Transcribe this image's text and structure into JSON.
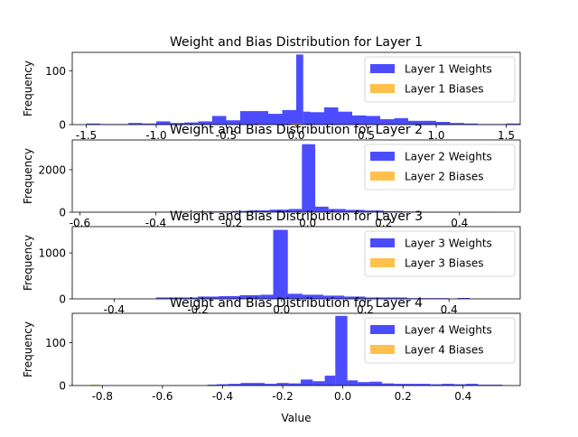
{
  "figure": {
    "xlabel": "Value"
  },
  "colors": {
    "weights": "#0000ff",
    "biases": "#ffa500"
  },
  "chart_data": [
    {
      "type": "bar",
      "title": "Weight and Bias Distribution for Layer 1",
      "ylabel": "Frequency",
      "xlim": [
        -1.6,
        1.6
      ],
      "ylim": [
        0,
        134
      ],
      "xticks": [
        -1.5,
        -1.0,
        -0.5,
        0.0,
        0.5,
        1.0,
        1.5
      ],
      "xtick_labels": [
        "-1.5",
        "-1.0",
        "-0.5",
        "0.0",
        "0.5",
        "1.0",
        "1.5"
      ],
      "yticks": [
        0,
        100
      ],
      "ytick_labels": [
        "0",
        "100"
      ],
      "grid": false,
      "legend_position": "top-right",
      "series": [
        {
          "name": "Layer 1 Weights",
          "color": "#0000ff",
          "bins": [
            [
              -1.5,
              -1.4,
              2
            ],
            [
              -1.4,
              -1.3,
              1
            ],
            [
              -1.3,
              -1.2,
              1
            ],
            [
              -1.2,
              -1.1,
              3
            ],
            [
              -1.1,
              -1.0,
              2
            ],
            [
              -1.0,
              -0.9,
              6
            ],
            [
              -0.9,
              -0.8,
              3
            ],
            [
              -0.8,
              -0.7,
              4
            ],
            [
              -0.7,
              -0.6,
              6
            ],
            [
              -0.6,
              -0.5,
              16
            ],
            [
              -0.5,
              -0.4,
              8
            ],
            [
              -0.4,
              -0.3,
              25
            ],
            [
              -0.3,
              -0.2,
              25
            ],
            [
              -0.2,
              -0.1,
              20
            ],
            [
              -0.1,
              0.0,
              27
            ],
            [
              0.0,
              0.05,
              130
            ],
            [
              0.05,
              0.1,
              24
            ],
            [
              0.1,
              0.2,
              23
            ],
            [
              0.2,
              0.3,
              32
            ],
            [
              0.3,
              0.4,
              24
            ],
            [
              0.4,
              0.5,
              17
            ],
            [
              0.5,
              0.6,
              16
            ],
            [
              0.6,
              0.7,
              10
            ],
            [
              0.7,
              0.8,
              12
            ],
            [
              0.8,
              0.9,
              7
            ],
            [
              0.9,
              1.0,
              7
            ],
            [
              1.0,
              1.1,
              5
            ],
            [
              1.1,
              1.2,
              3
            ],
            [
              1.2,
              1.3,
              2
            ],
            [
              1.3,
              1.4,
              1
            ],
            [
              1.4,
              1.5,
              1
            ],
            [
              1.5,
              1.6,
              2
            ]
          ]
        },
        {
          "name": "Layer 1 Biases",
          "color": "#ffa500",
          "bins": [
            [
              -0.04,
              0.04,
              2
            ]
          ]
        }
      ]
    },
    {
      "type": "bar",
      "title": "Weight and Bias Distribution for Layer 2",
      "ylabel": "Frequency",
      "xlim": [
        -0.62,
        0.56
      ],
      "ylim": [
        0,
        3400
      ],
      "xticks": [
        -0.6,
        -0.4,
        -0.2,
        0.0,
        0.2,
        0.4
      ],
      "xtick_labels": [
        "-0.6",
        "-0.4",
        "-0.2",
        "0.0",
        "0.2",
        "0.4"
      ],
      "yticks": [
        0,
        2000
      ],
      "ytick_labels": [
        "0",
        "2000"
      ],
      "grid": false,
      "legend_position": "top-right",
      "series": [
        {
          "name": "Layer 2 Weights",
          "color": "#0000ff",
          "bins": [
            [
              -0.6,
              -0.5,
              5
            ],
            [
              -0.5,
              -0.4,
              10
            ],
            [
              -0.4,
              -0.3,
              20
            ],
            [
              -0.3,
              -0.2,
              35
            ],
            [
              -0.2,
              -0.15,
              60
            ],
            [
              -0.15,
              -0.1,
              90
            ],
            [
              -0.1,
              -0.05,
              120
            ],
            [
              -0.05,
              -0.015,
              150
            ],
            [
              -0.015,
              0.02,
              3200
            ],
            [
              0.02,
              0.055,
              260
            ],
            [
              0.055,
              0.1,
              150
            ],
            [
              0.1,
              0.15,
              110
            ],
            [
              0.15,
              0.2,
              80
            ],
            [
              0.2,
              0.25,
              50
            ],
            [
              0.25,
              0.3,
              30
            ],
            [
              0.3,
              0.4,
              15
            ],
            [
              0.4,
              0.5,
              5
            ]
          ]
        },
        {
          "name": "Layer 2 Biases",
          "color": "#ffa500",
          "bins": []
        }
      ]
    },
    {
      "type": "bar",
      "title": "Weight and Bias Distribution for Layer 3",
      "ylabel": "Frequency",
      "xlim": [
        -0.5,
        0.57
      ],
      "ylim": [
        0,
        1570
      ],
      "xticks": [
        -0.4,
        -0.2,
        0.0,
        0.2,
        0.4
      ],
      "xtick_labels": [
        "-0.4",
        "-0.2",
        "0.0",
        "0.2",
        "0.4"
      ],
      "yticks": [
        0,
        1000
      ],
      "ytick_labels": [
        "0",
        "1000"
      ],
      "grid": false,
      "legend_position": "top-right",
      "series": [
        {
          "name": "Layer 3 Weights",
          "color": "#0000ff",
          "bins": [
            [
              -0.3,
              -0.2,
              30
            ],
            [
              -0.2,
              -0.15,
              50
            ],
            [
              -0.15,
              -0.1,
              60
            ],
            [
              -0.1,
              -0.05,
              80
            ],
            [
              -0.05,
              -0.02,
              90
            ],
            [
              -0.02,
              0.015,
              1500
            ],
            [
              0.015,
              0.05,
              110
            ],
            [
              0.05,
              0.1,
              90
            ],
            [
              0.1,
              0.15,
              70
            ],
            [
              0.15,
              0.2,
              50
            ],
            [
              0.2,
              0.3,
              30
            ],
            [
              0.3,
              0.4,
              15
            ],
            [
              0.42,
              0.45,
              20
            ]
          ]
        },
        {
          "name": "Layer 3 Biases",
          "color": "#ffa500",
          "bins": []
        }
      ]
    },
    {
      "type": "bar",
      "title": "Weight and Bias Distribution for Layer 4",
      "ylabel": "Frequency",
      "xlim": [
        -0.9,
        0.59
      ],
      "ylim": [
        0,
        168
      ],
      "xticks": [
        -0.8,
        -0.6,
        -0.4,
        -0.2,
        0.0,
        0.2,
        0.4
      ],
      "xtick_labels": [
        "-0.8",
        "-0.6",
        "-0.4",
        "-0.2",
        "0.0",
        "0.2",
        "0.4"
      ],
      "yticks": [
        0,
        100
      ],
      "ytick_labels": [
        "0",
        "100"
      ],
      "grid": false,
      "legend_position": "top-right",
      "series": [
        {
          "name": "Layer 4 Weights",
          "color": "#0000ff",
          "bins": [
            [
              -0.45,
              -0.42,
              2
            ],
            [
              -0.42,
              -0.38,
              3
            ],
            [
              -0.38,
              -0.34,
              4
            ],
            [
              -0.34,
              -0.26,
              6
            ],
            [
              -0.26,
              -0.22,
              4
            ],
            [
              -0.22,
              -0.18,
              6
            ],
            [
              -0.18,
              -0.14,
              5
            ],
            [
              -0.14,
              -0.1,
              14
            ],
            [
              -0.1,
              -0.06,
              10
            ],
            [
              -0.06,
              -0.025,
              23
            ],
            [
              -0.025,
              0.015,
              162
            ],
            [
              0.015,
              0.05,
              12
            ],
            [
              0.05,
              0.09,
              8
            ],
            [
              0.09,
              0.13,
              9
            ],
            [
              0.13,
              0.17,
              5
            ],
            [
              0.17,
              0.21,
              4
            ],
            [
              0.21,
              0.29,
              4
            ],
            [
              0.29,
              0.33,
              3
            ],
            [
              0.33,
              0.37,
              4
            ],
            [
              0.37,
              0.41,
              3
            ],
            [
              0.41,
              0.45,
              4
            ],
            [
              0.45,
              0.53,
              2
            ]
          ]
        },
        {
          "name": "Layer 4 Biases",
          "color": "#ffa500",
          "bins": [
            [
              -0.84,
              -0.81,
              2
            ],
            [
              -0.02,
              0.02,
              1
            ]
          ]
        }
      ]
    }
  ]
}
